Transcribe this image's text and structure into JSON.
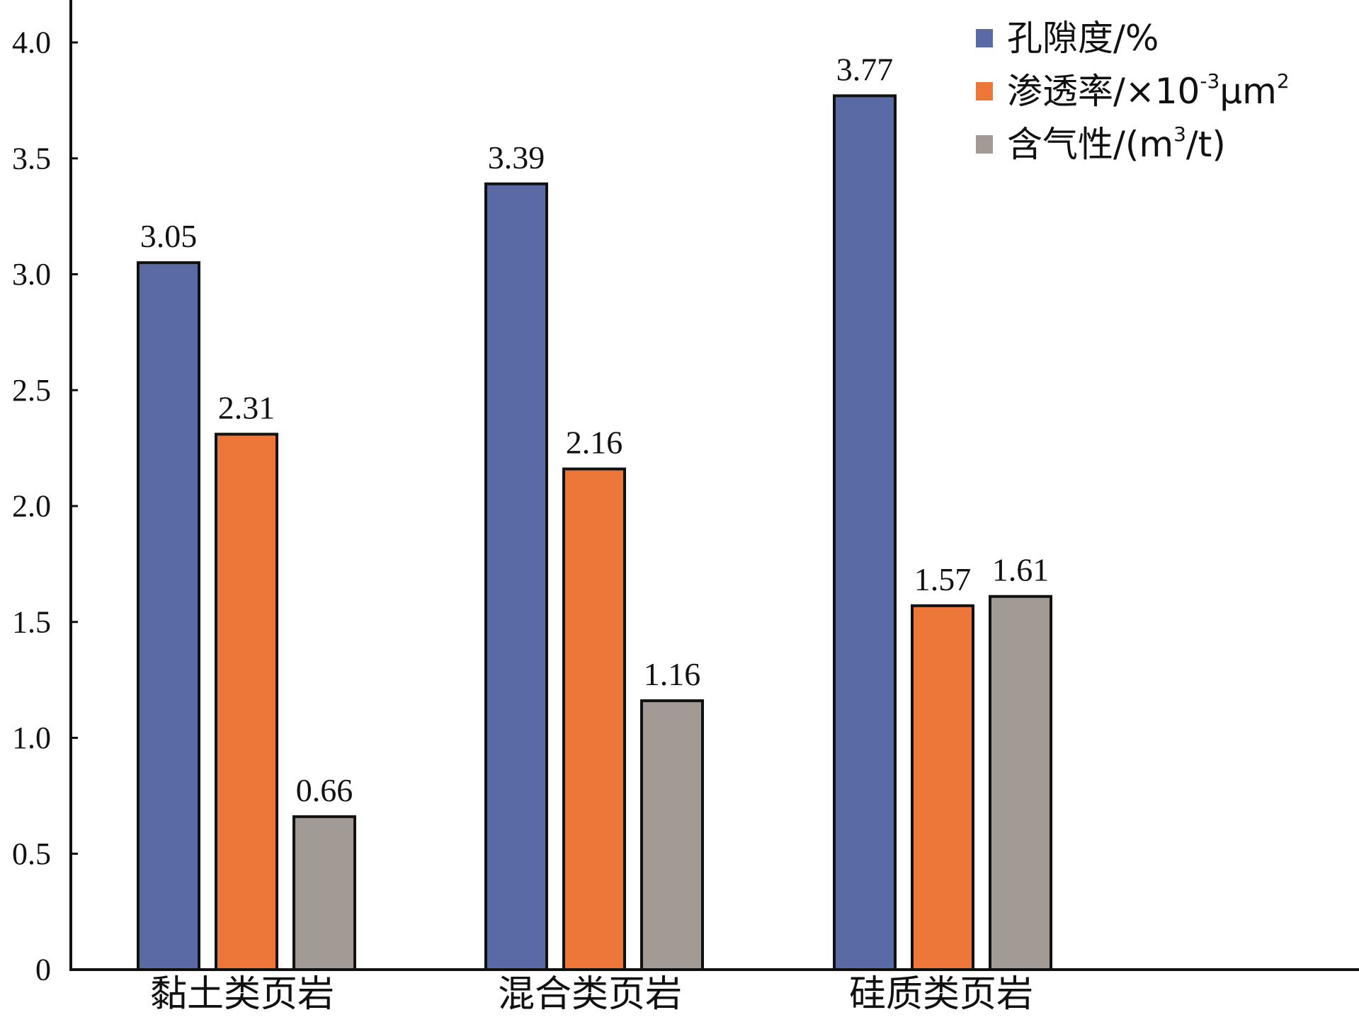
{
  "chart_data": {
    "type": "bar",
    "categories": [
      "黏土类页岩",
      "混合类页岩",
      "硅质类页岩"
    ],
    "series": [
      {
        "name": "孔隙度/%",
        "legend_parts": [
          {
            "t": "孔隙度/%"
          }
        ],
        "color": "#5a6aa5",
        "values": [
          3.05,
          3.39,
          3.77
        ]
      },
      {
        "name": "渗透率/×10⁻³μm²",
        "legend_parts": [
          {
            "t": "渗透率/×10"
          },
          {
            "t": "-3",
            "sup": true
          },
          {
            "t": "μm"
          },
          {
            "t": "2",
            "sup": true
          }
        ],
        "color": "#ed7639",
        "values": [
          2.31,
          2.16,
          1.57
        ]
      },
      {
        "name": "含气性/(m³/t)",
        "legend_parts": [
          {
            "t": "含气性/(m"
          },
          {
            "t": "3",
            "sup": true
          },
          {
            "t": "/t)"
          }
        ],
        "color": "#a29a95",
        "values": [
          0.66,
          1.16,
          1.61
        ]
      }
    ],
    "data_labels": [
      [
        "3.05",
        "3.39",
        "3.77"
      ],
      [
        "2.31",
        "2.16",
        "1.57"
      ],
      [
        "0.66",
        "1.16",
        "1.61"
      ]
    ],
    "ylim": [
      0,
      4.0
    ],
    "yticks": [
      0,
      0.5,
      1.0,
      1.5,
      2.0,
      2.5,
      3.0,
      3.5,
      4.0
    ],
    "ytick_labels": [
      "0",
      "0.5",
      "1.0",
      "1.5",
      "2.0",
      "2.5",
      "3.0",
      "3.5",
      "4.0"
    ],
    "title": "",
    "xlabel": "",
    "ylabel": "",
    "grid": false,
    "legend_position": "top-right",
    "bar_edge_color": "#111111"
  }
}
